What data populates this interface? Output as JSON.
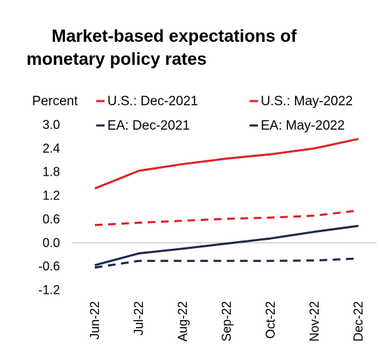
{
  "title_line1": "Market-based expectations of",
  "title_line2": "monetary policy rates",
  "chart_data": {
    "type": "line",
    "title": "Market-based expectations of monetary policy rates",
    "ylabel": "Percent",
    "xlabel": "",
    "categories": [
      "Jun-22",
      "Jul-22",
      "Aug-22",
      "Sep-22",
      "Oct-22",
      "Nov-22",
      "Dec-22"
    ],
    "ylim": [
      -1.2,
      3.0
    ],
    "yticks": [
      "3.0",
      "2.4",
      "1.8",
      "1.2",
      "0.6",
      "0.0",
      "-0.6",
      "-1.2"
    ],
    "grid": false,
    "legend_position": "top",
    "series": [
      {
        "name": "U.S.: Dec-2021",
        "color": "#e31f26",
        "dash": true,
        "values": [
          0.45,
          0.51,
          0.56,
          0.61,
          0.64,
          0.69,
          0.82
        ]
      },
      {
        "name": "U.S.: May-2022",
        "color": "#e31f26",
        "dash": false,
        "values": [
          1.38,
          1.83,
          2.0,
          2.14,
          2.25,
          2.4,
          2.64
        ]
      },
      {
        "name": "EA: Dec-2021",
        "color": "#1a2747",
        "dash": true,
        "values": [
          -0.63,
          -0.46,
          -0.46,
          -0.46,
          -0.46,
          -0.45,
          -0.4
        ]
      },
      {
        "name": "EA: May-2022",
        "color": "#1a2747",
        "dash": false,
        "values": [
          -0.57,
          -0.27,
          -0.15,
          -0.02,
          0.11,
          0.28,
          0.43
        ]
      }
    ]
  }
}
